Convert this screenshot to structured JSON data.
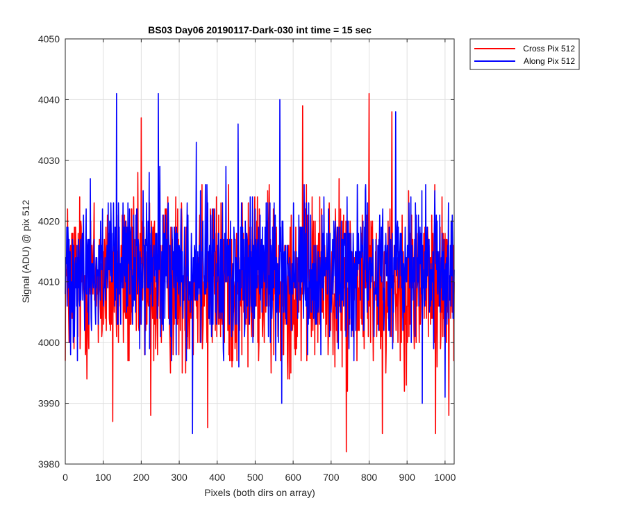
{
  "chart_data": {
    "type": "line",
    "title": "BS03 Day06 20190117-Dark-030 int time = 15 sec",
    "xlabel": "Pixels (both dirs on array)",
    "ylabel": "Signal (ADU) @ pix 512",
    "xlim": [
      0,
      1024
    ],
    "ylim": [
      3980,
      4050
    ],
    "xticks": [
      0,
      100,
      200,
      300,
      400,
      500,
      600,
      700,
      800,
      900,
      1000
    ],
    "yticks": [
      3980,
      3990,
      4000,
      4010,
      4020,
      4030,
      4040,
      4050
    ],
    "grid": true,
    "legend_position": "outside-top-right",
    "series": [
      {
        "name": "Cross Pix 512",
        "color": "#ff0000",
        "mean": 4010,
        "noise": 7,
        "extremes": [
          [
            125,
            3987
          ],
          [
            200,
            4037
          ],
          [
            225,
            3988
          ],
          [
            360,
            4026
          ],
          [
            375,
            3986
          ],
          [
            625,
            4039
          ],
          [
            740,
            3982
          ],
          [
            800,
            4041
          ],
          [
            835,
            3985
          ],
          [
            860,
            4038
          ],
          [
            975,
            3985
          ],
          [
            1010,
            3988
          ]
        ]
      },
      {
        "name": "Along Pix 512",
        "color": "#0000ff",
        "mean": 4012,
        "noise": 6,
        "extremes": [
          [
            135,
            4041
          ],
          [
            245,
            4041
          ],
          [
            335,
            3985
          ],
          [
            565,
            4040
          ],
          [
            570,
            3990
          ],
          [
            455,
            4036
          ],
          [
            870,
            4038
          ],
          [
            940,
            3990
          ],
          [
            345,
            4033
          ],
          [
            1000,
            3991
          ]
        ]
      }
    ]
  }
}
